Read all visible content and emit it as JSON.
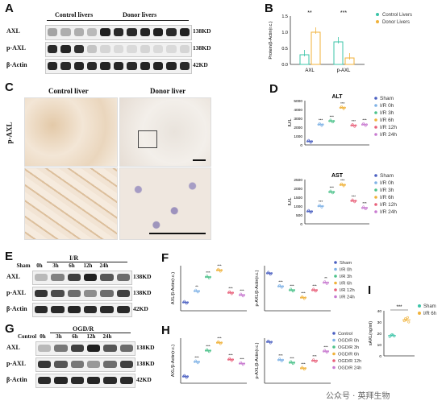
{
  "panels": {
    "a": {
      "letter": "A",
      "group_control": "Control livers",
      "group_donor": "Donor livers",
      "rows": [
        {
          "label": "AXL",
          "kd": "138KD"
        },
        {
          "label": "p-AXL",
          "kd": "138KD"
        },
        {
          "label": "β-Actin",
          "kd": "42KD"
        }
      ]
    },
    "b": {
      "letter": "B"
    },
    "c": {
      "letter": "C",
      "title_control": "Control liver",
      "title_donor": "Donor liver",
      "row_label": "p-AXL"
    },
    "d": {
      "letter": "D"
    },
    "e": {
      "letter": "E",
      "treatment": "I/R",
      "lanes": [
        "Sham",
        "0h",
        "3h",
        "6h",
        "12h",
        "24h"
      ],
      "rows": [
        {
          "label": "AXL",
          "kd": "138KD"
        },
        {
          "label": "p-AXL",
          "kd": "138KD"
        },
        {
          "label": "β-Actin",
          "kd": "42KD"
        }
      ]
    },
    "f": {
      "letter": "F"
    },
    "g": {
      "letter": "G",
      "treatment": "OGD/R",
      "lanes": [
        "Control",
        "0h",
        "3h",
        "6h",
        "12h",
        "24h"
      ],
      "rows": [
        {
          "label": "AXL",
          "kd": "138KD"
        },
        {
          "label": "p-AXL",
          "kd": "138KD"
        },
        {
          "label": "β-Actin",
          "kd": "42KD"
        }
      ]
    },
    "h": {
      "letter": "H"
    },
    "i": {
      "letter": "I"
    }
  },
  "watermark": "公众号 · 英拜生物",
  "colors": {
    "control": "#3cc4a8",
    "donor": "#f0b23a",
    "ir": [
      "#4a5fc1",
      "#7fb2e6",
      "#4cc28a",
      "#f0b23a",
      "#e8607a",
      "#c87ad0"
    ]
  },
  "chart_data": [
    {
      "id": "B",
      "type": "bar",
      "categories": [
        "AXL",
        "p-AXL"
      ],
      "series": [
        {
          "name": "Control Livers",
          "values": [
            0.3,
            0.7
          ]
        },
        {
          "name": "Donor  Livers",
          "values": [
            1.0,
            0.2
          ]
        }
      ],
      "ylabel": "Protein/β-Actin(r.c.)",
      "ylim": [
        0,
        1.5
      ],
      "yticks": [
        "0.0",
        "0.5",
        "1.0",
        "1.5"
      ],
      "annotations": [
        "**",
        "***"
      ]
    },
    {
      "id": "D1",
      "type": "line",
      "title": "ALT",
      "ylabel": "IU/L",
      "categories": [
        "Sham",
        "I/R 0h",
        "I/R 3h",
        "I/R 6h",
        "I/R 12h",
        "I/R 24h"
      ],
      "values": [
        400,
        2300,
        2700,
        4200,
        2200,
        2300
      ],
      "ylim": [
        0,
        5000
      ],
      "yticks": [
        "0",
        "1000",
        "2000",
        "3000",
        "4000",
        "5000"
      ],
      "annotations": [
        "",
        "***",
        "***",
        "***",
        "***",
        "***"
      ]
    },
    {
      "id": "D2",
      "type": "line",
      "title": "AST",
      "ylabel": "IU/L",
      "categories": [
        "Sham",
        "I/R 0h",
        "I/R 3h",
        "I/R 6h",
        "I/R 12h",
        "I/R 24h"
      ],
      "values": [
        700,
        1000,
        1800,
        2200,
        1300,
        900
      ],
      "ylim": [
        0,
        2500
      ],
      "yticks": [
        "0",
        "500",
        "1000",
        "1500",
        "2000",
        "2500"
      ],
      "annotations": [
        "",
        "***",
        "***",
        "***",
        "***",
        "***"
      ]
    },
    {
      "id": "F1",
      "type": "line",
      "ylabel": "AXL/β-Actin(r.c.)",
      "categories": [
        "Sham",
        "I/R 0h",
        "I/R 3h",
        "I/R 6h",
        "I/R 12h",
        "I/R 24h"
      ],
      "values": [
        0.15,
        0.35,
        0.6,
        0.72,
        0.32,
        0.28
      ],
      "ylim": [
        0,
        0.8
      ],
      "annotations": [
        "",
        "**",
        "***",
        "***",
        "***",
        "***"
      ]
    },
    {
      "id": "F2",
      "type": "line",
      "ylabel": "p-AXL/β-Actin(r.c.)",
      "categories": [
        "Sham",
        "I/R 0h",
        "I/R 3h",
        "I/R 6h",
        "I/R 12h",
        "I/R 24h"
      ],
      "values": [
        1.0,
        0.65,
        0.55,
        0.35,
        0.55,
        0.75
      ],
      "ylim": [
        0,
        1.2
      ],
      "annotations": [
        "",
        "***",
        "***",
        "***",
        "***",
        "**"
      ]
    },
    {
      "id": "H1",
      "type": "line",
      "ylabel": "AXL/β-Actin(r.c.)",
      "categories": [
        "Control",
        "OGD/R 0h",
        "OGD/R 3h",
        "OGD/R 6h",
        "OGD/R 12h",
        "OGD/R 24h"
      ],
      "values": [
        0.12,
        0.38,
        0.58,
        0.72,
        0.42,
        0.35
      ],
      "ylim": [
        0,
        0.8
      ],
      "annotations": [
        "",
        "***",
        "***",
        "***",
        "***",
        "***"
      ]
    },
    {
      "id": "H2",
      "type": "line",
      "ylabel": "p-AXL/β-Actin(r.c.)",
      "categories": [
        "Control",
        "OGD/R 0h",
        "OGD/R 3h",
        "OGD/R 6h",
        "OGD/R 12h",
        "OGD/R 24h"
      ],
      "values": [
        1.1,
        0.62,
        0.55,
        0.4,
        0.6,
        0.85
      ],
      "ylim": [
        0,
        1.2
      ],
      "annotations": [
        "",
        "***",
        "***",
        "***",
        "***",
        "***"
      ]
    },
    {
      "id": "I",
      "type": "scatter",
      "ylabel": "sAXL(ng/ml)",
      "categories": [
        "Sham",
        "I/R 6h"
      ],
      "series": [
        {
          "name": "Sham",
          "values": [
            17,
            18,
            19,
            18.5,
            17.5
          ]
        },
        {
          "name": "I/R 6h",
          "values": [
            31,
            33,
            32,
            34,
            30
          ]
        }
      ],
      "ylim": [
        0,
        40
      ],
      "yticks": [
        "0",
        "10",
        "20",
        "30",
        "40"
      ],
      "annotations": [
        "***"
      ]
    }
  ]
}
